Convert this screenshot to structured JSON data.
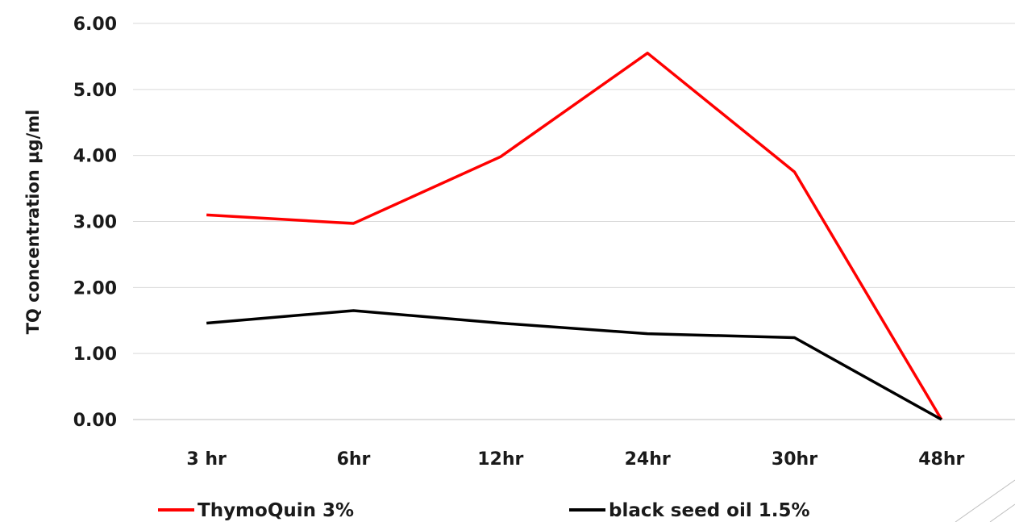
{
  "chart_data": {
    "type": "line",
    "title": "",
    "xlabel": "",
    "ylabel": "TQ concentration µg/ml",
    "categories": [
      "3 hr",
      "6hr",
      "12hr",
      "24hr",
      "30hr",
      "48hr"
    ],
    "ylim": [
      0,
      6
    ],
    "y_ticks": [
      "0.00",
      "1.00",
      "2.00",
      "3.00",
      "4.00",
      "5.00",
      "6.00"
    ],
    "grid": true,
    "legend": "bottom",
    "series": [
      {
        "name": "ThymoQuin 3%",
        "color": "#ff0000",
        "values": [
          3.1,
          2.97,
          3.98,
          5.55,
          3.75,
          0.0
        ]
      },
      {
        "name": "black seed oil 1.5%",
        "color": "#000000",
        "values": [
          1.46,
          1.65,
          1.46,
          1.3,
          1.24,
          0.0
        ]
      }
    ]
  },
  "colors": {
    "grid": "#d9d9d9",
    "axis": "#bfbfbf",
    "decoration": "#bfbfbf"
  }
}
